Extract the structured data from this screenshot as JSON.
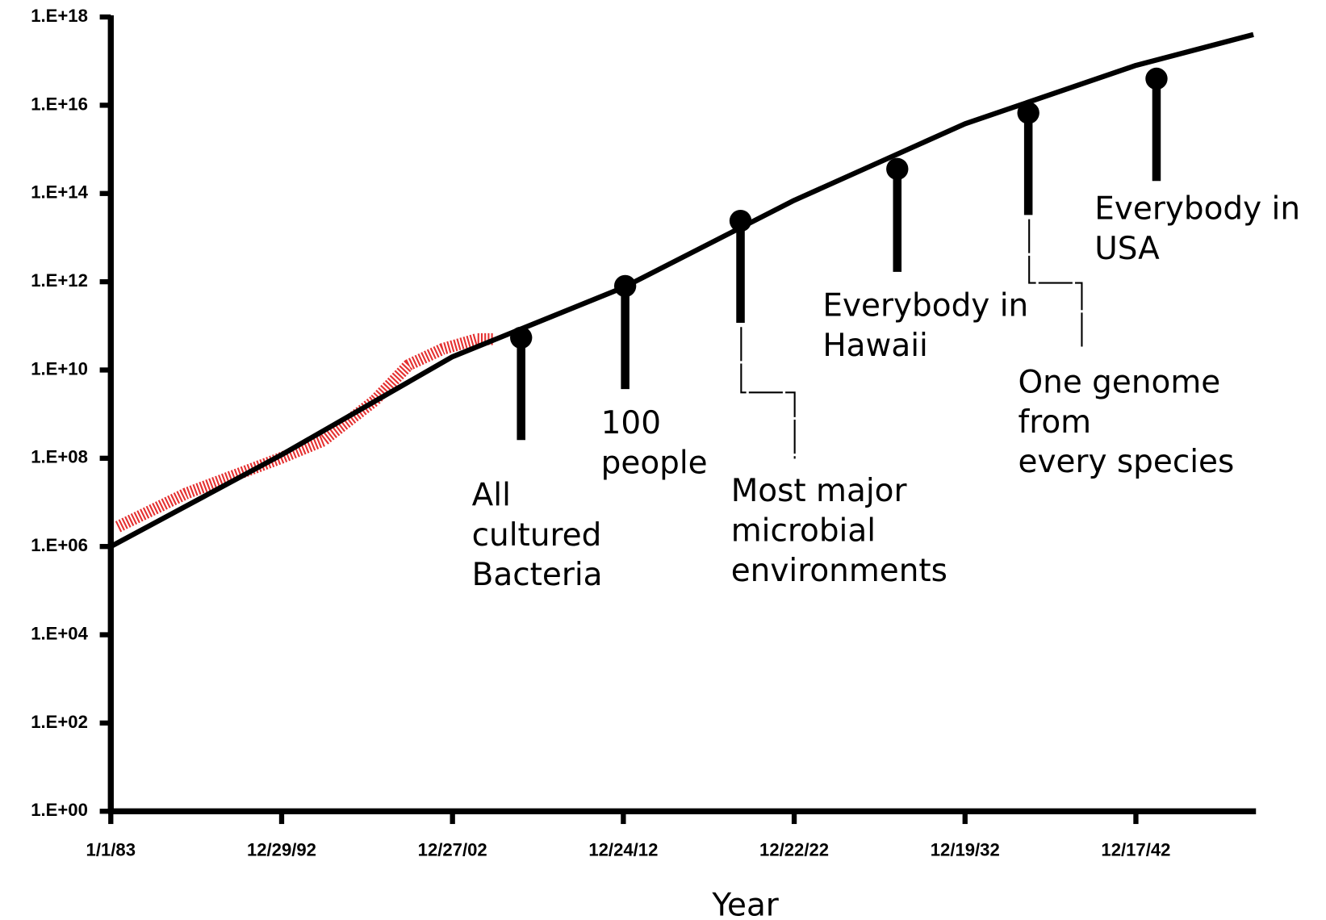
{
  "chart_data": {
    "type": "line",
    "x_label": "Year",
    "log_y": true,
    "ylim": [
      1,
      1e+18
    ],
    "yticks": [
      {
        "value": 1,
        "label": "1.E+00"
      },
      {
        "value": 100.0,
        "label": "1.E+02"
      },
      {
        "value": 10000.0,
        "label": "1.E+04"
      },
      {
        "value": 1000000.0,
        "label": "1.E+06"
      },
      {
        "value": 100000000.0,
        "label": "1.E+08"
      },
      {
        "value": 10000000000.0,
        "label": "1.E+10"
      },
      {
        "value": 1000000000000.0,
        "label": "1.E+12"
      },
      {
        "value": 100000000000000.0,
        "label": "1.E+14"
      },
      {
        "value": 1e+16,
        "label": "1.E+16"
      },
      {
        "value": 1e+18,
        "label": "1.E+18"
      }
    ],
    "xlim": [
      "1983-01-01",
      "2049-11-01"
    ],
    "xticks": [
      {
        "value": "1983-01-01",
        "label": "1/1/83"
      },
      {
        "value": "1992-12-29",
        "label": "12/29/92"
      },
      {
        "value": "2002-12-27",
        "label": "12/27/02"
      },
      {
        "value": "2012-12-24",
        "label": "12/24/12"
      },
      {
        "value": "2022-12-22",
        "label": "12/22/22"
      },
      {
        "value": "2032-12-19",
        "label": "12/19/32"
      },
      {
        "value": "2042-12-17",
        "label": "12/17/42"
      }
    ],
    "series": [
      {
        "color": "#e53030",
        "x": [
          "1983-06-01",
          "1987-06-01",
          "1992-12-01",
          "1995-06-01",
          "1998-06-01",
          "2000-06-01",
          "2002-06-01",
          "2004-06-01",
          "2005-06-01"
        ],
        "values": [
          2800000.0,
          16000000.0,
          100000000.0,
          250000000.0,
          2000000000.0,
          13000000000.0,
          30000000000.0,
          50000000000.0,
          50000000000.0
        ]
      },
      {
        "color": "#000000",
        "x": [
          "1983-01-01",
          "1992-12-29",
          "2002-12-27",
          "2012-12-24",
          "2022-12-22",
          "2032-12-19",
          "2042-12-17",
          "2049-11-01"
        ],
        "values": [
          1000000.0,
          120000000.0,
          20000000000.0,
          740000000000.0,
          70000000000000.0,
          3800000000000000.0,
          8e+16,
          4e+17
        ]
      }
    ],
    "milestones": [
      {
        "x": "2007-01",
        "value": 54000000000.0,
        "text": [
          "All",
          "cultured",
          "Bacteria"
        ]
      },
      {
        "x": "2013-02",
        "value": 800000000000.0,
        "text": [
          "100",
          "people"
        ]
      },
      {
        "x": "2019-11",
        "value": 24000000000000.0,
        "text": [
          "Most major",
          "microbial",
          "environments"
        ]
      },
      {
        "x": "2029-01",
        "value": 360000000000000.0,
        "text": [
          "Everybody in",
          "Hawaii"
        ]
      },
      {
        "x": "2036-09",
        "value": 6700000000000000.0,
        "text": [
          "One genome",
          "from",
          "every species"
        ]
      },
      {
        "x": "2044-03",
        "value": 4e+16,
        "text": [
          "Everybody in",
          "USA"
        ]
      }
    ]
  }
}
